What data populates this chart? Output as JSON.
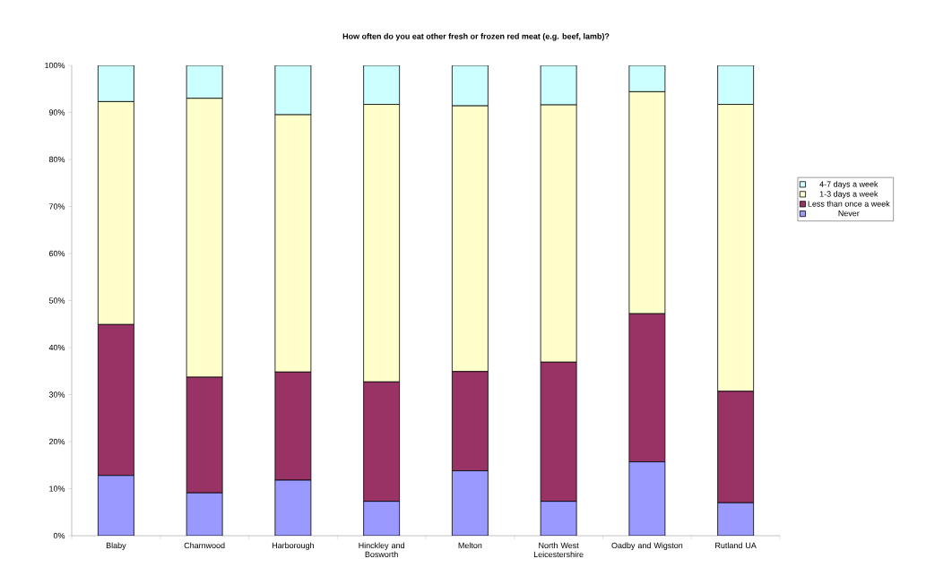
{
  "chart_data": {
    "type": "bar",
    "title": "How often do you eat other fresh or frozen red meat (e.g. beef, lamb)?",
    "categories": [
      "Blaby",
      "Charnwood",
      "Harborough",
      "Hinckley and Bosworth",
      "Melton",
      "North West Leicestershire",
      "Oadby and Wigston",
      "Rutland UA"
    ],
    "series": [
      {
        "name": "Never",
        "color": "#9999ff",
        "values": [
          12.8,
          9.1,
          11.8,
          7.3,
          13.8,
          7.3,
          15.7,
          7.0
        ]
      },
      {
        "name": "Less than once a week",
        "color": "#993366",
        "values": [
          32.1,
          24.6,
          23.0,
          25.4,
          21.1,
          29.6,
          31.5,
          23.7
        ]
      },
      {
        "name": "1-3 days a week",
        "color": "#ffffcc",
        "values": [
          47.4,
          59.3,
          54.7,
          59.0,
          56.5,
          54.7,
          47.2,
          61.0
        ]
      },
      {
        "name": "4-7 days a week",
        "color": "#ccffff",
        "values": [
          7.7,
          7.0,
          10.5,
          8.3,
          8.6,
          8.4,
          5.6,
          8.3
        ]
      }
    ],
    "stacked": true,
    "ylim": [
      0,
      100
    ],
    "yticks": [
      {
        "value": 0,
        "label": "0%"
      },
      {
        "value": 10,
        "label": "10%"
      },
      {
        "value": 20,
        "label": "20%"
      },
      {
        "value": 30,
        "label": "30%"
      },
      {
        "value": 40,
        "label": "40%"
      },
      {
        "value": 50,
        "label": "50%"
      },
      {
        "value": 60,
        "label": "60%"
      },
      {
        "value": 70,
        "label": "70%"
      },
      {
        "value": 80,
        "label": "80%"
      },
      {
        "value": 90,
        "label": "90%"
      },
      {
        "value": 100,
        "label": "100%"
      }
    ],
    "legend": "right"
  }
}
